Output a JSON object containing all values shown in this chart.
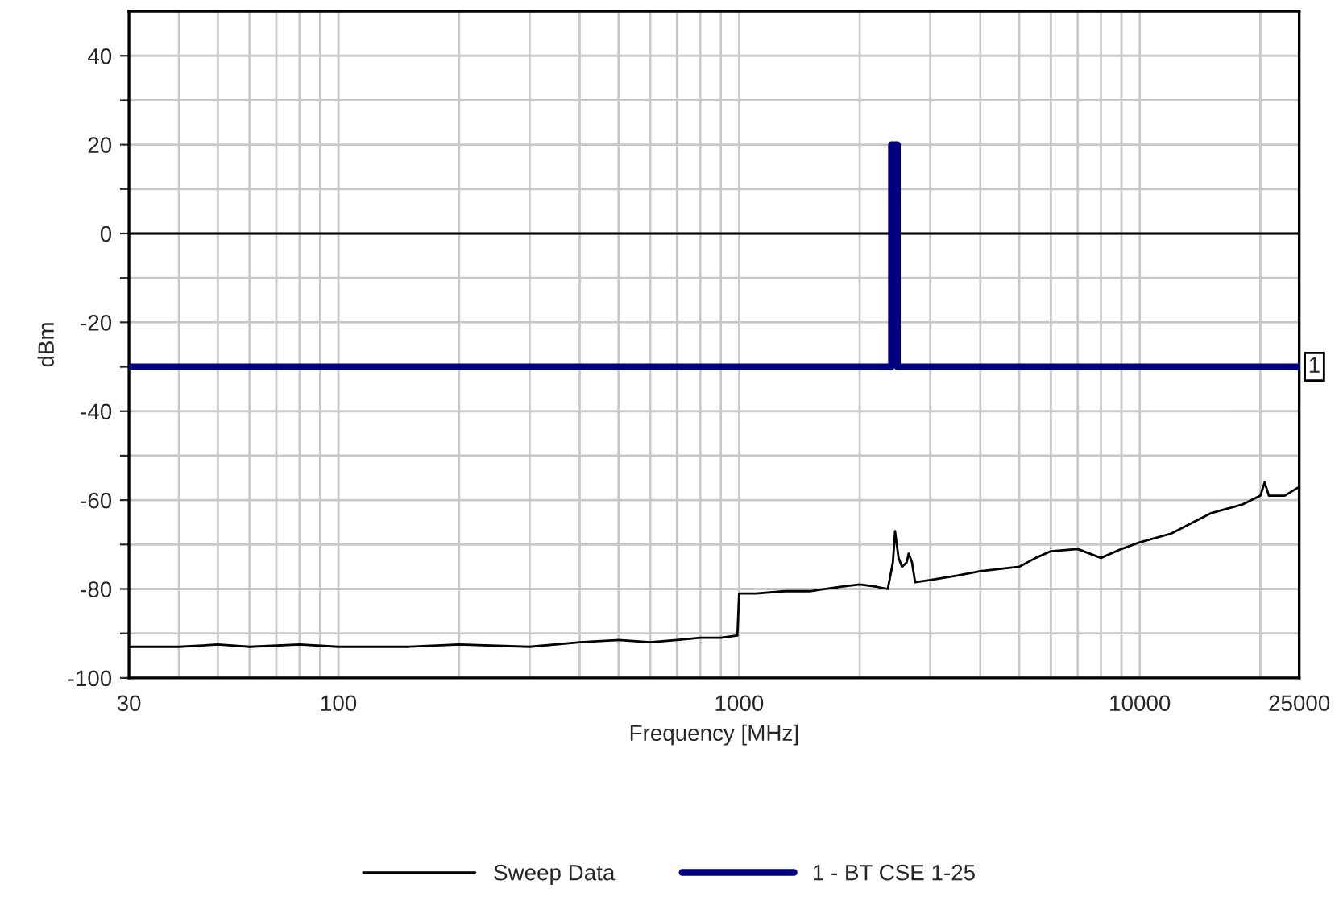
{
  "chart_data": {
    "type": "line",
    "xlabel": "Frequency [MHz]",
    "ylabel": "dBm",
    "log": "x",
    "grid": true,
    "legend": "bottom",
    "line_style": "solid",
    "marker": "none",
    "xlim": [
      30,
      25000
    ],
    "ylim": [
      -100,
      50
    ],
    "xticks": [
      30,
      {
        "value": 40,
        "label": null
      },
      {
        "value": 50,
        "label": null
      },
      {
        "value": 60,
        "label": null
      },
      {
        "value": 70,
        "label": null
      },
      {
        "value": 80,
        "label": null
      },
      {
        "value": 90,
        "label": null
      },
      100,
      {
        "value": 200,
        "label": null
      },
      {
        "value": 300,
        "label": null
      },
      {
        "value": 400,
        "label": null
      },
      {
        "value": 500,
        "label": null
      },
      {
        "value": 600,
        "label": null
      },
      {
        "value": 700,
        "label": null
      },
      {
        "value": 800,
        "label": null
      },
      {
        "value": 900,
        "label": null
      },
      1000,
      {
        "value": 2000,
        "label": null
      },
      {
        "value": 3000,
        "label": null
      },
      {
        "value": 4000,
        "label": null
      },
      {
        "value": 5000,
        "label": null
      },
      {
        "value": 6000,
        "label": null
      },
      {
        "value": 7000,
        "label": null
      },
      {
        "value": 8000,
        "label": null
      },
      {
        "value": 9000,
        "label": null
      },
      10000,
      {
        "value": 20000,
        "label": null
      },
      25000
    ],
    "yticks": [
      -100,
      {
        "value": -90,
        "label": null
      },
      -80,
      {
        "value": -70,
        "label": null
      },
      -60,
      {
        "value": -50,
        "label": null
      },
      -40,
      {
        "value": -30,
        "label": null
      },
      -20,
      {
        "value": -10,
        "label": null
      },
      0,
      {
        "value": 10,
        "label": null
      },
      20,
      {
        "value": 30,
        "label": null
      },
      40
    ],
    "ref_lines": [
      {
        "axis": "y",
        "value": 0,
        "color": "#000000"
      }
    ],
    "annotations": [
      {
        "text": "1",
        "x": 25000,
        "y": -30
      }
    ],
    "series": [
      {
        "name": "Sweep Data",
        "color": "#000000",
        "x": [
          30,
          40,
          50,
          60,
          80,
          100,
          150,
          200,
          300,
          400,
          500,
          600,
          700,
          800,
          900,
          990,
          1000,
          1100,
          1300,
          1500,
          1800,
          2000,
          2200,
          2350,
          2420,
          2450,
          2500,
          2550,
          2620,
          2650,
          2700,
          2750,
          3000,
          3500,
          4000,
          5000,
          5500,
          6000,
          7000,
          8000,
          9000,
          10000,
          12000,
          15000,
          18000,
          20000,
          20500,
          21000,
          23000,
          25000
        ],
        "values": [
          -93,
          -93,
          -92.5,
          -93,
          -92.5,
          -93,
          -93,
          -92.5,
          -93,
          -92,
          -91.5,
          -92,
          -91.5,
          -91,
          -91,
          -90.5,
          -81,
          -81,
          -80.5,
          -80.5,
          -79.5,
          -79,
          -79.5,
          -80,
          -74,
          -67,
          -73,
          -75,
          -74,
          -72,
          -74,
          -78.5,
          -78,
          -77,
          -76,
          -75,
          -73,
          -71.5,
          -71,
          -73,
          -71,
          -69.5,
          -67.5,
          -63,
          -61,
          -59,
          -56,
          -59,
          -59,
          -57
        ]
      },
      {
        "name": "1 - BT CSE 1-25",
        "color": "#000080",
        "x": [
          30,
          2400,
          2400,
          2483.5,
          2483.5,
          25000
        ],
        "values": [
          -30,
          -30,
          20,
          20,
          -30,
          -30
        ]
      }
    ]
  }
}
